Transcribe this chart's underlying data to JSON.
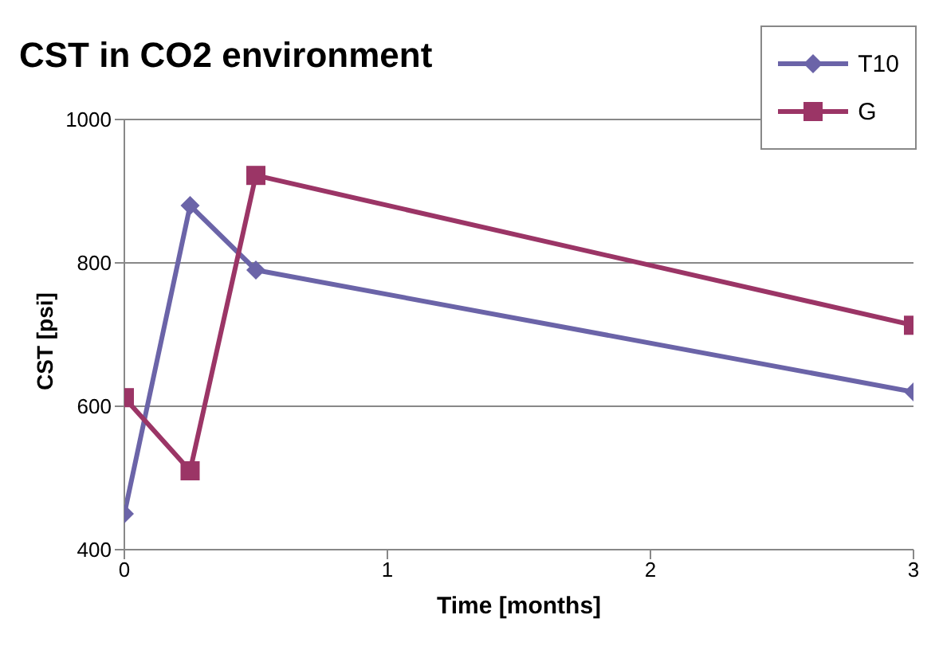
{
  "chart_data": {
    "type": "line",
    "title": "CST in CO2 environment",
    "xlabel": "Time [months]",
    "ylabel": "CST [psi]",
    "xlim": [
      0,
      3
    ],
    "xticks": [
      0,
      1,
      2,
      3
    ],
    "ylim": [
      400,
      1000
    ],
    "yticks": [
      400,
      600,
      800,
      1000
    ],
    "grid": "y",
    "legend": "top right",
    "line_style": "solid",
    "series": [
      {
        "name": "T10",
        "color": "#6b64a8",
        "marker": "diamond",
        "x": [
          0,
          0.25,
          0.5,
          3
        ],
        "values": [
          450,
          880,
          790,
          620
        ]
      },
      {
        "name": "G",
        "color": "#9b3566",
        "marker": "square",
        "x": [
          0,
          0.25,
          0.5,
          3
        ],
        "values": [
          612,
          510,
          922,
          713
        ]
      }
    ]
  }
}
